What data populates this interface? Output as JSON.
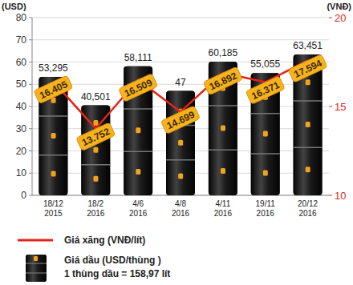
{
  "chart_data": {
    "type": "bar",
    "y_label": "(USD)",
    "y2_label": "(VNĐ)",
    "categories": [
      "18/12 2015",
      "18/2 2016",
      "4/6 2016",
      "4/8 2016",
      "4/11 2016",
      "19/11 2016",
      "20/12 2016"
    ],
    "series": [
      {
        "name": "Giá dầu (USD/thùng )",
        "type": "bar",
        "color": "#1a1a1a",
        "values": [
          53.295,
          40.501,
          58.111,
          47,
          60.185,
          55.055,
          63.451
        ],
        "value_labels": [
          "53,295",
          "40,501",
          "58,111",
          "47",
          "60,185",
          "55,055",
          "63,451"
        ]
      },
      {
        "name": "Giá xăng (VNĐ/lít)",
        "type": "line",
        "axis": "y2",
        "color": "#e3231b",
        "values": [
          16.405,
          13.752,
          16.509,
          14.699,
          16.892,
          16.371,
          17.594
        ]
      }
    ],
    "note": "1 thùng dầu = 158,97 lít",
    "ylim": [
      0,
      80
    ],
    "yticks": [
      0,
      10,
      20,
      30,
      40,
      50,
      60,
      70,
      80
    ],
    "y2lim": [
      10,
      20
    ],
    "y2ticks": [
      10,
      15,
      20
    ],
    "grid": true,
    "data_labels": true
  }
}
